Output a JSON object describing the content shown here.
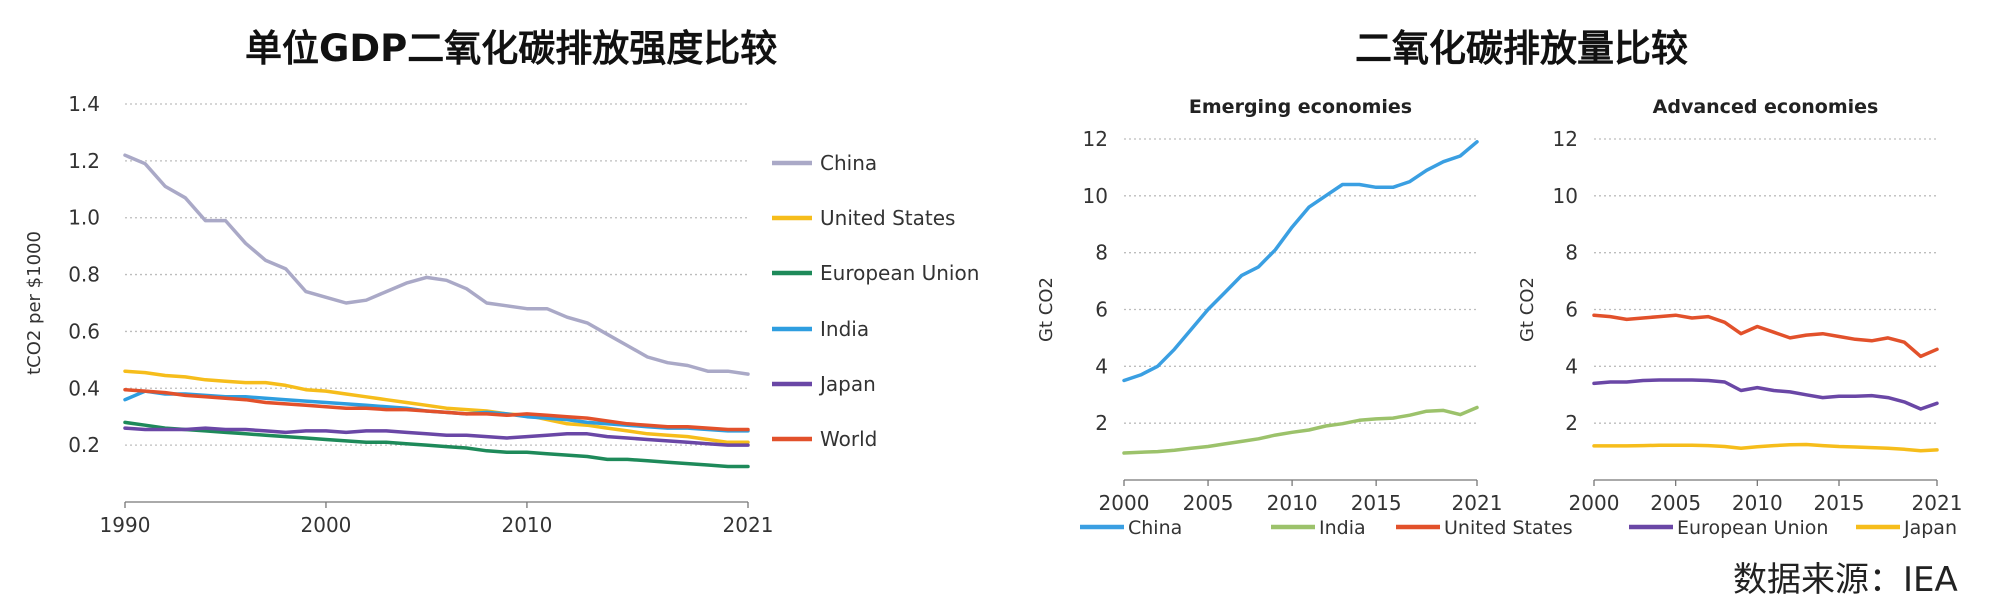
{
  "figure": {
    "left_title": "单位GDP二氧化碳排放强度比较",
    "right_title": "二氧化碳排放量比较",
    "source": "数据来源：IEA"
  },
  "colors": {
    "China_left": "#aaa9c7",
    "United States_left": "#f6bd1b",
    "European Union_left": "#1e8a5a",
    "India_left": "#2e9ee0",
    "Japan_left": "#6a47a6",
    "World_left": "#e2512b",
    "China_right": "#3a9fe2",
    "India_right": "#9cc26b",
    "United States_right": "#e2512b",
    "European Union_right": "#6a47a6",
    "Japan_right": "#f6bd1b",
    "grid": "#bdbdbd"
  },
  "chart_data": [
    {
      "type": "line",
      "title": "单位GDP二氧化碳排放强度比较",
      "ylabel": "tCO2 per $1000",
      "xlabel": "",
      "xlim": [
        1990,
        2021
      ],
      "ylim": [
        0,
        1.4
      ],
      "yticks": [
        "0.2",
        "0.4",
        "0.6",
        "0.8",
        "1.0",
        "1.2",
        "1.4"
      ],
      "xticks": [
        "1990",
        "2000",
        "2010",
        "2021"
      ],
      "grid": true,
      "legend": "right",
      "x": [
        1990,
        1991,
        1992,
        1993,
        1994,
        1995,
        1996,
        1997,
        1998,
        1999,
        2000,
        2001,
        2002,
        2003,
        2004,
        2005,
        2006,
        2007,
        2008,
        2009,
        2010,
        2011,
        2012,
        2013,
        2014,
        2015,
        2016,
        2017,
        2018,
        2019,
        2020,
        2021
      ],
      "series": [
        {
          "name": "China",
          "values": [
            1.22,
            1.19,
            1.11,
            1.07,
            0.99,
            0.99,
            0.91,
            0.85,
            0.82,
            0.74,
            0.72,
            0.7,
            0.71,
            0.74,
            0.77,
            0.79,
            0.78,
            0.75,
            0.7,
            0.69,
            0.68,
            0.68,
            0.65,
            0.63,
            0.59,
            0.55,
            0.51,
            0.49,
            0.48,
            0.46,
            0.46,
            0.45
          ]
        },
        {
          "name": "United States",
          "values": [
            0.46,
            0.455,
            0.445,
            0.44,
            0.43,
            0.425,
            0.42,
            0.42,
            0.41,
            0.395,
            0.39,
            0.38,
            0.37,
            0.36,
            0.35,
            0.34,
            0.33,
            0.325,
            0.32,
            0.31,
            0.305,
            0.29,
            0.275,
            0.27,
            0.26,
            0.25,
            0.24,
            0.235,
            0.23,
            0.22,
            0.21,
            0.21
          ]
        },
        {
          "name": "European Union",
          "values": [
            0.28,
            0.27,
            0.26,
            0.255,
            0.25,
            0.245,
            0.24,
            0.235,
            0.23,
            0.225,
            0.22,
            0.215,
            0.21,
            0.21,
            0.205,
            0.2,
            0.195,
            0.19,
            0.18,
            0.175,
            0.175,
            0.17,
            0.165,
            0.16,
            0.15,
            0.15,
            0.145,
            0.14,
            0.135,
            0.13,
            0.125,
            0.125
          ]
        },
        {
          "name": "India",
          "values": [
            0.36,
            0.39,
            0.38,
            0.38,
            0.375,
            0.37,
            0.37,
            0.365,
            0.36,
            0.355,
            0.35,
            0.345,
            0.34,
            0.335,
            0.33,
            0.32,
            0.315,
            0.31,
            0.315,
            0.31,
            0.3,
            0.295,
            0.29,
            0.28,
            0.275,
            0.27,
            0.265,
            0.26,
            0.26,
            0.255,
            0.25,
            0.25
          ]
        },
        {
          "name": "Japan",
          "values": [
            0.26,
            0.255,
            0.255,
            0.255,
            0.26,
            0.255,
            0.255,
            0.25,
            0.245,
            0.25,
            0.25,
            0.245,
            0.25,
            0.25,
            0.245,
            0.24,
            0.235,
            0.235,
            0.23,
            0.225,
            0.23,
            0.235,
            0.24,
            0.24,
            0.23,
            0.225,
            0.22,
            0.215,
            0.21,
            0.205,
            0.2,
            0.2
          ]
        },
        {
          "name": "World",
          "values": [
            0.395,
            0.39,
            0.385,
            0.375,
            0.37,
            0.365,
            0.36,
            0.35,
            0.345,
            0.34,
            0.335,
            0.33,
            0.33,
            0.325,
            0.325,
            0.32,
            0.315,
            0.31,
            0.31,
            0.305,
            0.31,
            0.305,
            0.3,
            0.295,
            0.285,
            0.275,
            0.27,
            0.265,
            0.265,
            0.26,
            0.255,
            0.255
          ]
        }
      ]
    },
    {
      "type": "line",
      "title": "Emerging economies",
      "ylabel": "Gt CO2",
      "xlabel": "",
      "xlim": [
        2000,
        2021
      ],
      "ylim": [
        0,
        12
      ],
      "yticks": [
        "2",
        "4",
        "6",
        "8",
        "10",
        "12"
      ],
      "xticks": [
        "2000",
        "2005",
        "2010",
        "2015",
        "2021"
      ],
      "grid": true,
      "x": [
        2000,
        2001,
        2002,
        2003,
        2004,
        2005,
        2006,
        2007,
        2008,
        2009,
        2010,
        2011,
        2012,
        2013,
        2014,
        2015,
        2016,
        2017,
        2018,
        2019,
        2020,
        2021
      ],
      "series": [
        {
          "name": "China",
          "values": [
            3.5,
            3.7,
            4.0,
            4.6,
            5.3,
            6.0,
            6.6,
            7.2,
            7.5,
            8.1,
            8.9,
            9.6,
            10.0,
            10.4,
            10.4,
            10.3,
            10.3,
            10.5,
            10.9,
            11.2,
            11.4,
            11.9
          ]
        },
        {
          "name": "India",
          "values": [
            0.95,
            0.98,
            1.0,
            1.05,
            1.12,
            1.18,
            1.27,
            1.36,
            1.45,
            1.58,
            1.68,
            1.76,
            1.9,
            1.98,
            2.1,
            2.15,
            2.18,
            2.28,
            2.42,
            2.45,
            2.3,
            2.55
          ]
        }
      ]
    },
    {
      "type": "line",
      "title": "Advanced economies",
      "ylabel": "Gt CO2",
      "xlabel": "",
      "xlim": [
        2000,
        2021
      ],
      "ylim": [
        0,
        12
      ],
      "yticks": [
        "2",
        "4",
        "6",
        "8",
        "10",
        "12"
      ],
      "xticks": [
        "2000",
        "2005",
        "2010",
        "2015",
        "2021"
      ],
      "grid": true,
      "x": [
        2000,
        2001,
        2002,
        2003,
        2004,
        2005,
        2006,
        2007,
        2008,
        2009,
        2010,
        2011,
        2012,
        2013,
        2014,
        2015,
        2016,
        2017,
        2018,
        2019,
        2020,
        2021
      ],
      "series": [
        {
          "name": "United States",
          "values": [
            5.8,
            5.75,
            5.65,
            5.7,
            5.75,
            5.8,
            5.7,
            5.75,
            5.55,
            5.15,
            5.4,
            5.2,
            5.0,
            5.1,
            5.15,
            5.05,
            4.95,
            4.9,
            5.0,
            4.85,
            4.35,
            4.6
          ]
        },
        {
          "name": "European Union",
          "values": [
            3.4,
            3.45,
            3.45,
            3.5,
            3.52,
            3.52,
            3.52,
            3.5,
            3.45,
            3.15,
            3.25,
            3.15,
            3.1,
            3.0,
            2.9,
            2.95,
            2.95,
            2.97,
            2.9,
            2.75,
            2.5,
            2.7
          ]
        },
        {
          "name": "Japan",
          "values": [
            1.2,
            1.2,
            1.2,
            1.21,
            1.22,
            1.22,
            1.22,
            1.21,
            1.18,
            1.12,
            1.17,
            1.21,
            1.24,
            1.25,
            1.21,
            1.18,
            1.16,
            1.14,
            1.12,
            1.08,
            1.03,
            1.06
          ]
        }
      ]
    }
  ],
  "legend_bottom": [
    "China",
    "India",
    "United States",
    "European Union",
    "Japan"
  ]
}
